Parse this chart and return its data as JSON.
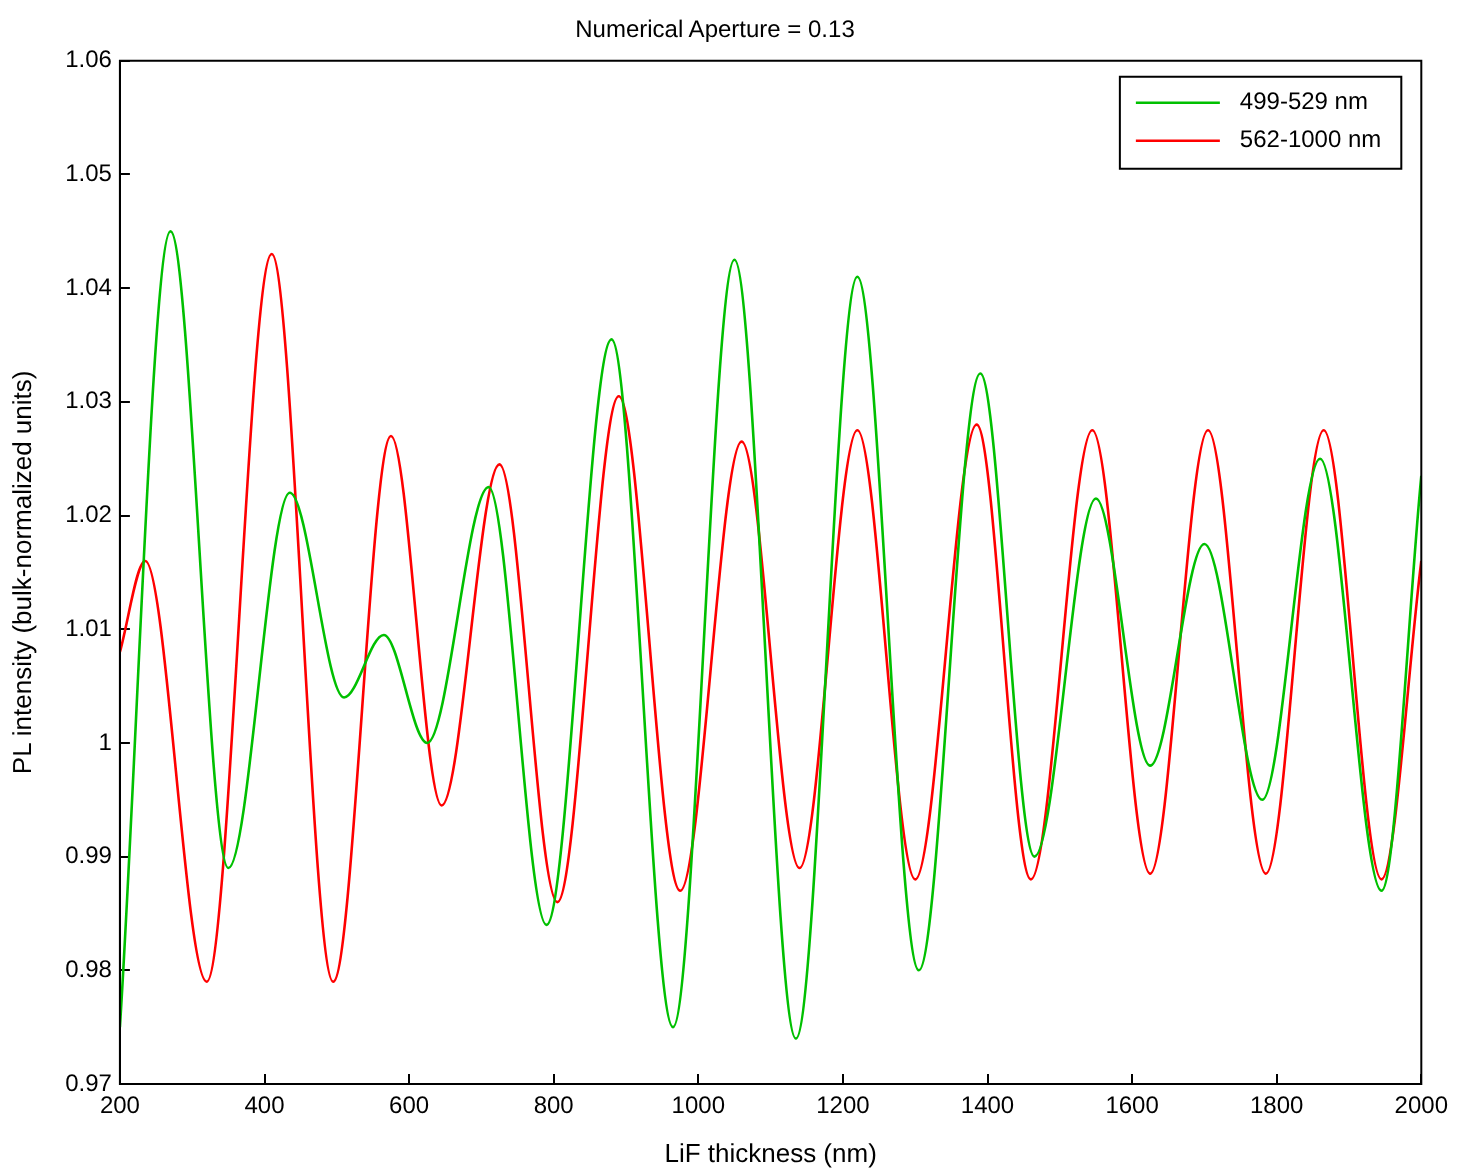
{
  "chart_data": {
    "type": "line",
    "title": "Numerical Aperture = 0.13",
    "xlabel": "LiF thickness (nm)",
    "ylabel": "PL intensity (bulk-normalized units)",
    "xlim": [
      200,
      2000
    ],
    "xticks": [
      200,
      400,
      600,
      800,
      1000,
      1200,
      1400,
      1600,
      1800,
      2000
    ],
    "ylim": [
      0.97,
      1.06
    ],
    "yticks": [
      0.97,
      0.98,
      0.99,
      1,
      1.01,
      1.02,
      1.03,
      1.04,
      1.05,
      1.06
    ],
    "grid": false,
    "legend": "top right",
    "marker": "none",
    "line_style": "solid",
    "series": [
      {
        "name": "499-529 nm",
        "color": "#00c000",
        "x": [
          200,
          270,
          350,
          435,
          510,
          565,
          625,
          710,
          790,
          880,
          965,
          1050,
          1135,
          1220,
          1305,
          1390,
          1465,
          1550,
          1625,
          1700,
          1780,
          1860,
          1945,
          2000
        ],
        "values": [
          0.975,
          1.045,
          0.989,
          1.022,
          1.004,
          1.0095,
          1.0,
          1.0225,
          0.984,
          1.0355,
          0.975,
          1.0425,
          0.974,
          1.041,
          0.98,
          1.0325,
          0.99,
          1.0215,
          0.998,
          1.0175,
          0.995,
          1.025,
          0.987,
          1.0235
        ]
      },
      {
        "name": "562-1000 nm",
        "color": "#ff0000",
        "x": [
          200,
          235,
          320,
          410,
          495,
          575,
          645,
          725,
          805,
          890,
          975,
          1060,
          1140,
          1220,
          1300,
          1385,
          1460,
          1545,
          1625,
          1705,
          1785,
          1865,
          1945,
          2000
        ],
        "values": [
          1.008,
          1.016,
          0.979,
          1.043,
          0.979,
          1.027,
          0.9945,
          1.0245,
          0.986,
          1.0305,
          0.987,
          1.0265,
          0.989,
          1.0275,
          0.988,
          1.028,
          0.988,
          1.0275,
          0.9885,
          1.0275,
          0.9885,
          1.0275,
          0.988,
          1.016
        ]
      }
    ]
  }
}
